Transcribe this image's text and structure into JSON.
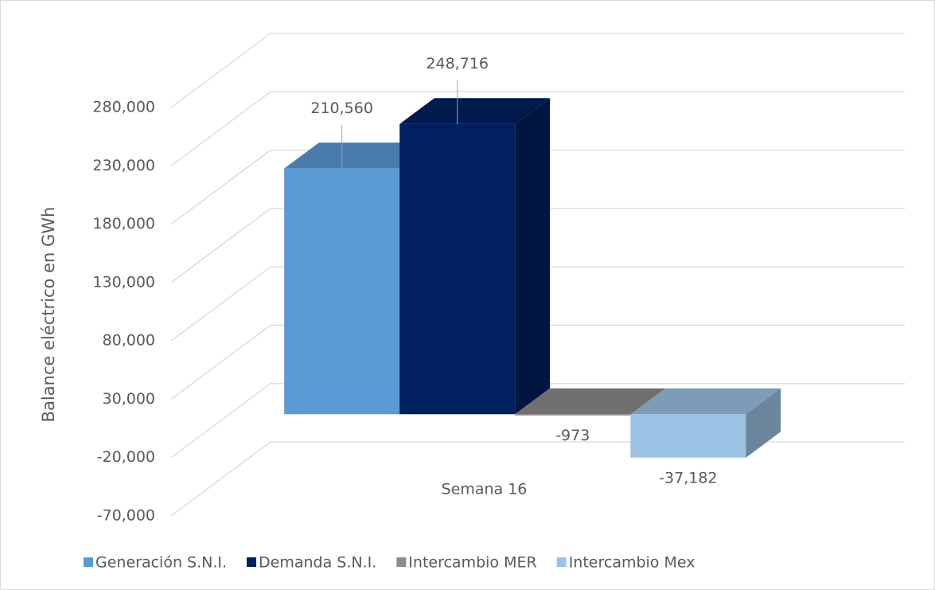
{
  "chart_data": {
    "type": "bar3d",
    "y_label": "Balance eléctrico    en GWh",
    "categories": [
      "Semana 16"
    ],
    "series": [
      {
        "name": "Generación S.N.I.",
        "color": "#5b9bd5",
        "values": [
          210560
        ],
        "value_labels": [
          "210,560"
        ]
      },
      {
        "name": "Demanda S.N.I.",
        "color": "#002060",
        "values": [
          248716
        ],
        "value_labels": [
          "248,716"
        ]
      },
      {
        "name": "Intercambio MER",
        "color": "#8c8c8c",
        "values": [
          -973
        ],
        "value_labels": [
          "-973"
        ]
      },
      {
        "name": "Intercambio Mex",
        "color": "#9dc3e6",
        "values": [
          -37182
        ],
        "value_labels": [
          "-37,182"
        ]
      }
    ],
    "ylim": [
      -70000,
      280000
    ],
    "yticks": [
      {
        "value": -70000,
        "label": "-70,000"
      },
      {
        "value": -20000,
        "label": "-20,000"
      },
      {
        "value": 30000,
        "label": "30,000"
      },
      {
        "value": 80000,
        "label": "80,000"
      },
      {
        "value": 130000,
        "label": "130,000"
      },
      {
        "value": 180000,
        "label": "180,000"
      },
      {
        "value": 230000,
        "label": "230,000"
      },
      {
        "value": 280000,
        "label": "280,000"
      }
    ],
    "grid": true,
    "legend": "bottom"
  }
}
